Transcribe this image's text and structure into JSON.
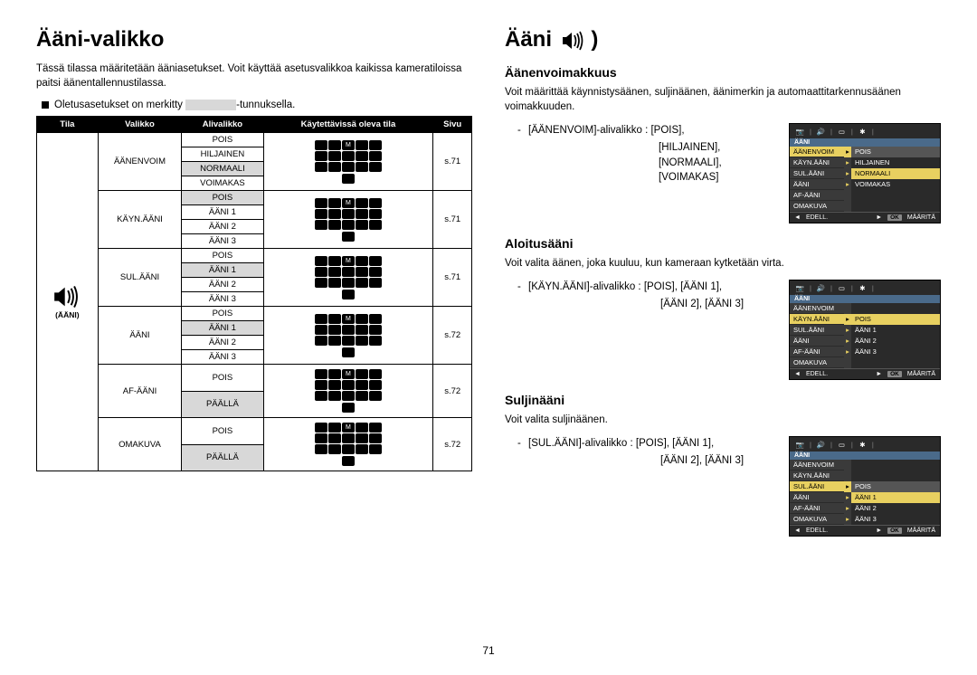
{
  "page_number": "71",
  "left_title": "Ääni-valikko",
  "right_title": "Ääni",
  "intro": "Tässä tilassa määritetään ääniasetukset. Voit käyttää asetusvalikkoa kaikissa kameratiloissa paitsi äänentallennustilassa.",
  "bullet_pre": "Oletusasetukset on merkitty",
  "bullet_post": "-tunnuksella.",
  "table_headers": [
    "Tila",
    "Valikko",
    "Alivalikko",
    "Käytettävissä oleva tila",
    "Sivu"
  ],
  "tila_label": "(ÄÄNI)",
  "groups": [
    {
      "valikko": "ÄÄNENVOIM",
      "subs": [
        "POIS",
        "HILJAINEN",
        "NORMAALI",
        "VOIMAKAS"
      ],
      "default_idx": 2,
      "sivu": "s.71"
    },
    {
      "valikko": "KÄYN.ÄÄNI",
      "subs": [
        "POIS",
        "ÄÄNI 1",
        "ÄÄNI 2",
        "ÄÄNI 3"
      ],
      "default_idx": 0,
      "sivu": "s.71"
    },
    {
      "valikko": "SUL.ÄÄNI",
      "subs": [
        "POIS",
        "ÄÄNI 1",
        "ÄÄNI 2",
        "ÄÄNI 3"
      ],
      "default_idx": 1,
      "sivu": "s.71"
    },
    {
      "valikko": "ÄÄNI",
      "subs": [
        "POIS",
        "ÄÄNI 1",
        "ÄÄNI 2",
        "ÄÄNI 3"
      ],
      "default_idx": 1,
      "sivu": "s.72"
    },
    {
      "valikko": "AF-ÄÄNI",
      "subs": [
        "POIS",
        "PÄÄLLÄ"
      ],
      "default_idx": 1,
      "sivu": "s.72"
    },
    {
      "valikko": "OMAKUVA",
      "subs": [
        "POIS",
        "PÄÄLLÄ"
      ],
      "default_idx": 1,
      "sivu": "s.72"
    }
  ],
  "sec1": {
    "h": "Äänenvoimakkuus",
    "p": "Voit määrittää käynnistysäänen, suljinäänen, äänimerkin ja automaattitarkennusäänen voimakkuuden.",
    "d1": "[ÄÄNENVOIM]-alivalikko :",
    "opts": [
      "[POIS],",
      "[HILJAINEN],",
      "[NORMAALI],",
      "[VOIMAKAS]"
    ]
  },
  "sec2": {
    "h": "Aloitusääni",
    "p": "Voit valita äänen, joka kuuluu, kun kameraan kytketään virta.",
    "d1": "[KÄYN.ÄÄNI]-alivalikko :",
    "opts": [
      "[POIS], [ÄÄNI 1],",
      "[ÄÄNI 2], [ÄÄNI 3]"
    ]
  },
  "sec3": {
    "h": "Suljinääni",
    "p": "Voit valita suljinäänen.",
    "d1": "[SUL.ÄÄNI]-alivalikko :",
    "opts": [
      "[POIS], [ÄÄNI 1],",
      "[ÄÄNI 2], [ÄÄNI 3]"
    ]
  },
  "lcd": {
    "hdr": "ÄÄNI",
    "rows": [
      "ÄÄNENVOIM",
      "KÄYN.ÄÄNI",
      "SUL.ÄÄNI",
      "ÄÄNI",
      "AF-ÄÄNI",
      "OMAKUVA"
    ],
    "back": "EDELL.",
    "ok": "OK",
    "set": "MÄÄRITÄ"
  },
  "lcd1_r": [
    "POIS",
    "HILJAINEN",
    "NORMAALI",
    "VOIMAKAS",
    "",
    ""
  ],
  "lcd1_hl": 0,
  "lcd1_hlr": 2,
  "lcd2_r": [
    "",
    "POIS",
    "ÄÄNI 1",
    "ÄÄNI 2",
    "ÄÄNI 3",
    ""
  ],
  "lcd2_hl": 1,
  "lcd2_hlr": 1,
  "lcd3_r": [
    "",
    "",
    "POIS",
    "ÄÄNI 1",
    "ÄÄNI 2",
    "ÄÄNI 3"
  ],
  "lcd3_hl": 2,
  "lcd3_hlr": 3
}
